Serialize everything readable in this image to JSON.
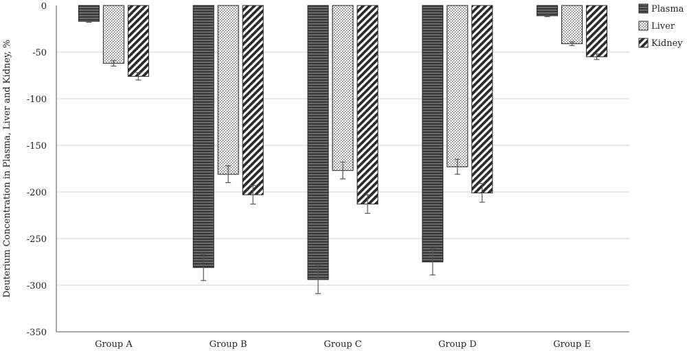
{
  "chart_data": {
    "type": "bar",
    "title": "",
    "xlabel": "",
    "ylabel": "Deuterium Concentration in Plasma, Liver and Kidney, %",
    "ylim": [
      -350,
      0
    ],
    "yticks": [
      0,
      -50,
      -100,
      -150,
      -200,
      -250,
      -300,
      -350
    ],
    "grid": true,
    "legend_position": "top-right",
    "categories": [
      "Group A",
      "Group B",
      "Group C",
      "Group D",
      "Group E"
    ],
    "series": [
      {
        "name": "Plasma",
        "pattern": "horizontal-lines",
        "values": [
          -17,
          -281,
          -294,
          -275,
          -11
        ],
        "errors": [
          1,
          14,
          15,
          14,
          1
        ]
      },
      {
        "name": "Liver",
        "pattern": "dots",
        "values": [
          -62,
          -181,
          -177,
          -173,
          -41
        ],
        "errors": [
          3,
          9,
          9,
          8,
          2
        ]
      },
      {
        "name": "Kidney",
        "pattern": "diagonal-lines",
        "values": [
          -76,
          -203,
          -213,
          -201,
          -55
        ],
        "errors": [
          4,
          10,
          10,
          10,
          3
        ]
      }
    ],
    "colors": {
      "plasma_fill": "#4d4d4d",
      "stroke": "#222222",
      "grid": "#d0d0d0",
      "error_bar": "#555555"
    }
  }
}
